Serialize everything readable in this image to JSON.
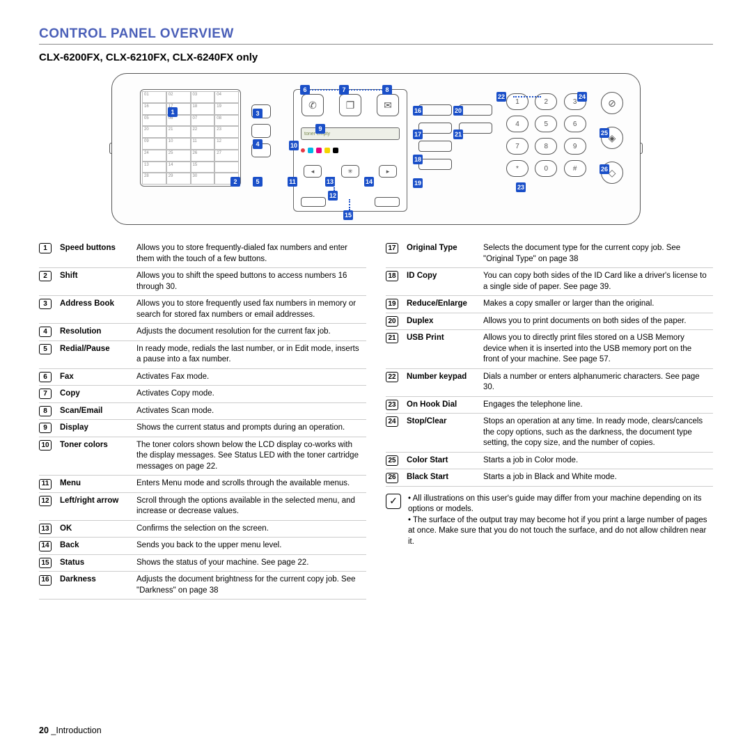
{
  "section_title": "CONTROL PANEL OVERVIEW",
  "subtitle": "CLX-6200FX, CLX-6210FX, CLX-6240FX only",
  "colors": {
    "accent": "#4a5fb8",
    "callout": "#1a4fc8",
    "cyan": "#00b7e6",
    "magenta": "#e6007e",
    "yellow": "#f5d400",
    "black": "#000000"
  },
  "keypad": [
    "1",
    "2",
    "3",
    "4",
    "5",
    "6",
    "7",
    "8",
    "9",
    "*",
    "0",
    "#"
  ],
  "lcd_text": "toner empty",
  "legend_left": [
    {
      "n": "1",
      "label": "Speed buttons",
      "desc": "Allows you to store frequently-dialed fax numbers and enter them with the touch of a few buttons."
    },
    {
      "n": "2",
      "label": "Shift",
      "desc": "Allows you to shift the speed buttons to access numbers 16 through 30."
    },
    {
      "n": "3",
      "label": "Address Book",
      "desc": "Allows you to store frequently used fax numbers in memory or search for stored fax numbers or email addresses."
    },
    {
      "n": "4",
      "label": "Resolution",
      "desc": "Adjusts the document resolution for the current fax job."
    },
    {
      "n": "5",
      "label": "Redial/Pause",
      "desc": "In ready mode, redials the last number, or in Edit mode, inserts a pause into a fax number."
    },
    {
      "n": "6",
      "label": "Fax",
      "desc": "Activates Fax mode."
    },
    {
      "n": "7",
      "label": "Copy",
      "desc": "Activates Copy mode."
    },
    {
      "n": "8",
      "label": "Scan/Email",
      "desc": "Activates Scan mode."
    },
    {
      "n": "9",
      "label": "Display",
      "desc": "Shows the current status and prompts during an operation."
    },
    {
      "n": "10",
      "label": "Toner colors",
      "desc": "The toner colors shown below the LCD display co-works with the display messages. See Status LED with the toner cartridge messages on page 22."
    },
    {
      "n": "11",
      "label": "Menu",
      "desc": "Enters Menu mode and scrolls through the available menus."
    },
    {
      "n": "12",
      "label": "Left/right arrow",
      "desc": "Scroll through the options available in the selected menu, and increase or decrease values."
    },
    {
      "n": "13",
      "label": "OK",
      "desc": "Confirms the selection on the screen."
    },
    {
      "n": "14",
      "label": "Back",
      "desc": "Sends you back to the upper menu level."
    },
    {
      "n": "15",
      "label": "Status",
      "desc": "Shows the status of your machine. See page 22."
    },
    {
      "n": "16",
      "label": "Darkness",
      "desc": "Adjusts the document brightness for the current copy job. See \"Darkness\" on page 38"
    }
  ],
  "legend_right": [
    {
      "n": "17",
      "label": "Original Type",
      "desc": "Selects the document type for the current copy job. See \"Original Type\" on page 38"
    },
    {
      "n": "18",
      "label": "ID Copy",
      "desc": "You can copy both sides of the ID Card like a driver's license to a single side of paper. See page 39."
    },
    {
      "n": "19",
      "label": "Reduce/Enlarge",
      "desc": "Makes a copy smaller or larger than the original."
    },
    {
      "n": "20",
      "label": "Duplex",
      "desc": "Allows you to print documents on both sides of the paper."
    },
    {
      "n": "21",
      "label": "USB Print",
      "desc": "Allows you to directly print files stored on a USB Memory device when it is inserted into the USB memory port on the front of your machine. See page 57."
    },
    {
      "n": "22",
      "label": "Number keypad",
      "desc": "Dials a number or enters alphanumeric characters. See page 30."
    },
    {
      "n": "23",
      "label": "On Hook Dial",
      "desc": "Engages the telephone line."
    },
    {
      "n": "24",
      "label": "Stop/Clear",
      "desc": "Stops an operation at any time. In ready mode, clears/cancels the copy options, such as the darkness, the document type setting, the copy size, and the number of copies."
    },
    {
      "n": "25",
      "label": "Color Start",
      "desc": "Starts a job in Color mode."
    },
    {
      "n": "26",
      "label": "Black Start",
      "desc": "Starts a job in Black and White mode."
    }
  ],
  "notes": [
    "All illustrations on this user's guide may differ from your machine depending on its options or models.",
    "The surface of the output tray may become hot if you print a large number of pages at once. Make sure that you do not touch the surface, and do not allow children near it."
  ],
  "footer": {
    "page": "20",
    "chapter": "Introduction"
  }
}
